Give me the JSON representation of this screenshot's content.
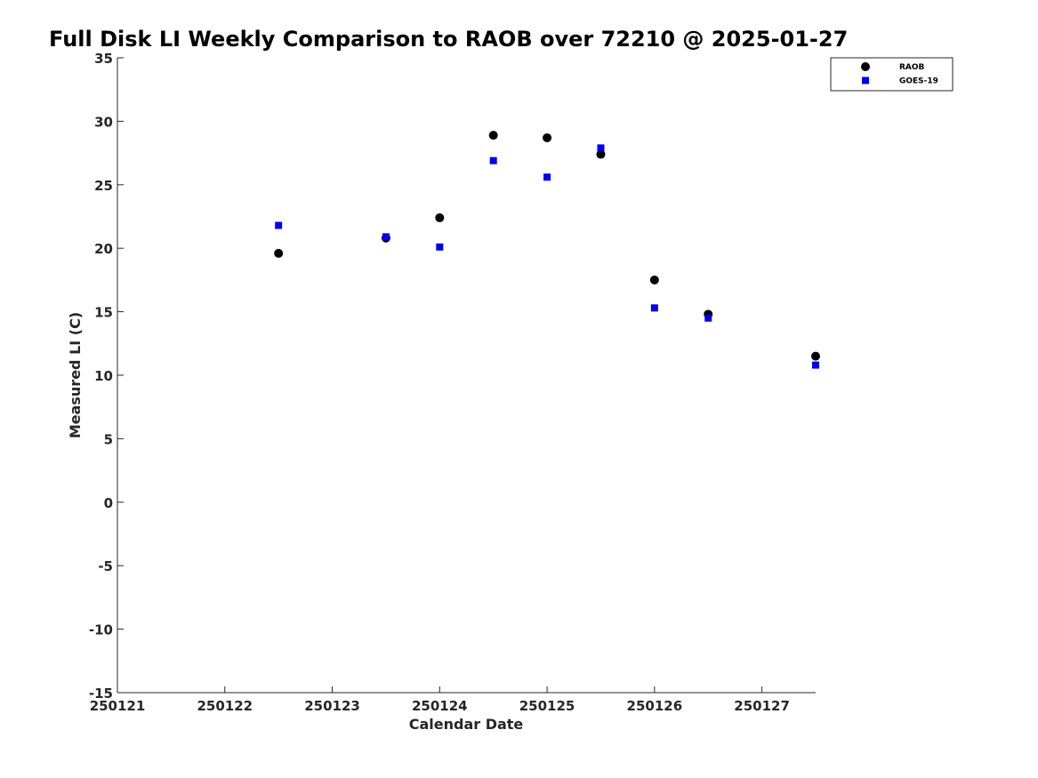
{
  "chart_data": {
    "type": "scatter",
    "title": "Full Disk LI Weekly Comparison to RAOB over 72210 @ 2025-01-27",
    "xlabel": "Calendar Date",
    "ylabel": "Measured LI (C)",
    "xlim": [
      0,
      6.5
    ],
    "ylim": [
      -15,
      35
    ],
    "x_ticks": [
      {
        "value": 0,
        "label": "250121"
      },
      {
        "value": 1,
        "label": "250122"
      },
      {
        "value": 2,
        "label": "250123"
      },
      {
        "value": 3,
        "label": "250124"
      },
      {
        "value": 4,
        "label": "250125"
      },
      {
        "value": 5,
        "label": "250126"
      },
      {
        "value": 6,
        "label": "250127"
      }
    ],
    "y_ticks": [
      35,
      30,
      25,
      20,
      15,
      10,
      5,
      0,
      -5,
      -10,
      -15
    ],
    "grid": false,
    "legend_position": "top-right",
    "series": [
      {
        "name": "RAOB",
        "marker": "circle",
        "color": "#000000",
        "x": [
          1.5,
          2.5,
          3.0,
          3.5,
          4.0,
          4.5,
          5.0,
          5.5,
          6.5
        ],
        "y": [
          19.6,
          20.8,
          22.4,
          28.9,
          28.7,
          27.4,
          17.5,
          14.8,
          11.5
        ]
      },
      {
        "name": "GOES-19",
        "marker": "square",
        "color": "#0000ee",
        "x": [
          1.5,
          2.5,
          3.0,
          3.5,
          4.0,
          4.5,
          5.0,
          5.5,
          6.5
        ],
        "y": [
          21.8,
          20.9,
          20.1,
          26.9,
          25.6,
          27.9,
          15.3,
          14.5,
          10.8
        ]
      }
    ]
  }
}
